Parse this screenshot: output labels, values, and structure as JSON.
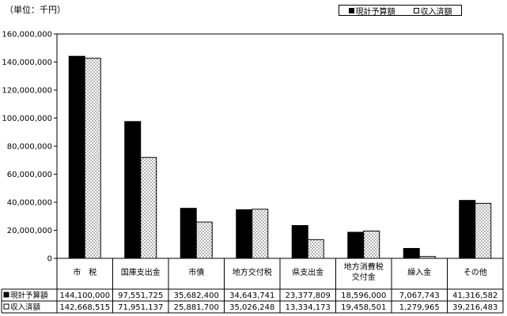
{
  "unit_label": "（単位：千円）",
  "chart_data": {
    "type": "bar",
    "categories": [
      "市　税",
      "国庫支出金",
      "市債",
      "地方交付税",
      "県支出金",
      "地方消費税\n交付金",
      "繰入金",
      "その他"
    ],
    "series": [
      {
        "name": "現計予算額",
        "values": [
          144100000,
          97551725,
          35682400,
          34643741,
          23377809,
          18596000,
          7067743,
          41316582
        ],
        "labels": [
          "144,100,000",
          "97,551,725",
          "35,682,400",
          "34,643,741",
          "23,377,809",
          "18,596,000",
          "7,067,743",
          "41,316,582"
        ],
        "color": "#000000"
      },
      {
        "name": "収入済額",
        "values": [
          142668515,
          71951137,
          25881700,
          35026248,
          13334173,
          19458501,
          1279965,
          39216483
        ],
        "labels": [
          "142,668,515",
          "71,951,137",
          "25,881,700",
          "35,026,248",
          "13,334,173",
          "19,458,501",
          "1,279,965",
          "39,216,483"
        ],
        "color": "#ffffff"
      }
    ],
    "ylim": [
      0,
      160000000
    ],
    "yticks": [
      0,
      20000000,
      40000000,
      60000000,
      80000000,
      100000000,
      120000000,
      140000000,
      160000000
    ],
    "ytick_labels": [
      "0",
      "20,000,000",
      "40,000,000",
      "60,000,000",
      "80,000,000",
      "100,000,000",
      "120,000,000",
      "140,000,000",
      "160,000,000"
    ],
    "legend_position": "top-right",
    "grid": false,
    "data_table": true
  }
}
